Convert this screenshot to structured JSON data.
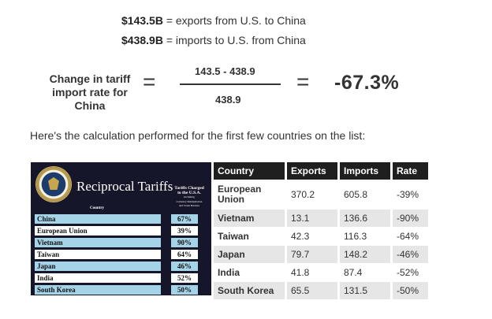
{
  "definitions": [
    {
      "value": "$143.5B",
      "text": "= exports from U.S. to China"
    },
    {
      "value": "$438.9B",
      "text": "= imports to U.S. from China"
    }
  ],
  "formula": {
    "label_line1": "Change in tariff",
    "label_line2": "import rate for",
    "label_line3": "China",
    "eq1": "=",
    "numerator": "143.5 - 438.9",
    "denominator": "438.9",
    "eq2": "=",
    "result": "-67.3%"
  },
  "intro": "Here's the calculation performed for the first few countries on the list:",
  "board": {
    "title": "Reciprocal Tariffs",
    "country_header": "Country",
    "sub_line1": "Tariffs Charged",
    "sub_line2": "to the U.S.A.",
    "sub_line3": "Including",
    "sub_line4": "Currency Manipulation",
    "sub_line5": "and Trade Barriers",
    "rows": [
      {
        "country": "China",
        "rate": "67%"
      },
      {
        "country": "European Union",
        "rate": "39%"
      },
      {
        "country": "Vietnam",
        "rate": "90%"
      },
      {
        "country": "Taiwan",
        "rate": "64%"
      },
      {
        "country": "Japan",
        "rate": "46%"
      },
      {
        "country": "India",
        "rate": "52%"
      },
      {
        "country": "South Korea",
        "rate": "50%"
      }
    ]
  },
  "table": {
    "headers": [
      "Country",
      "Exports",
      "Imports",
      "Rate"
    ],
    "rows": [
      {
        "country": "European Union",
        "exports": "370.2",
        "imports": "605.8",
        "rate": "-39%"
      },
      {
        "country": "Vietnam",
        "exports": "13.1",
        "imports": "136.6",
        "rate": "-90%"
      },
      {
        "country": "Taiwan",
        "exports": "42.3",
        "imports": "116.3",
        "rate": "-64%"
      },
      {
        "country": "Japan",
        "exports": "79.7",
        "imports": "148.2",
        "rate": "-46%"
      },
      {
        "country": "India",
        "exports": "41.8",
        "imports": "87.4",
        "rate": "-52%"
      },
      {
        "country": "South Korea",
        "exports": "65.5",
        "imports": "131.5",
        "rate": "-50%"
      }
    ]
  },
  "colors": {
    "board_bg": "#16162a",
    "board_row_blue": "#a5d3e7",
    "table_header_bg": "#1f1f1f",
    "table_row_grey": "#e6e6e6"
  }
}
